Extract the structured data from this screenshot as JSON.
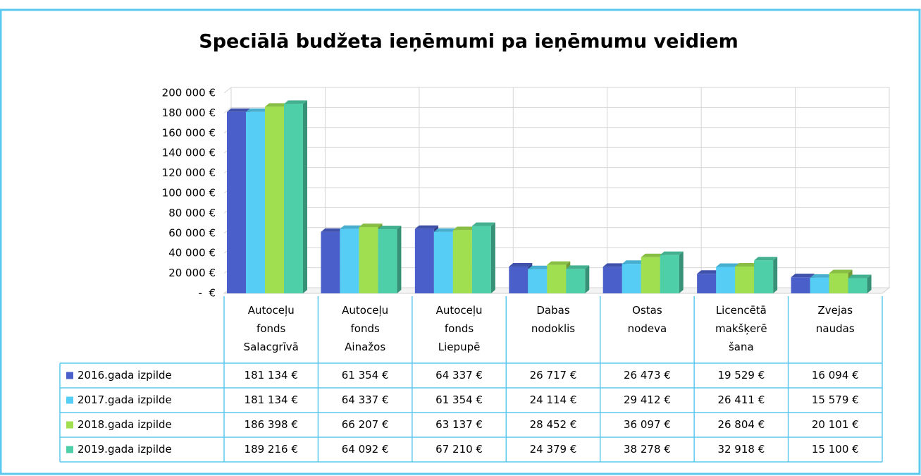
{
  "chart_data": {
    "type": "bar",
    "title": "Speciālā budžeta ieņēmumi pa ieņēmumu veidiem",
    "categories": [
      "Autoceļu fonds Salacgrīvā",
      "Autoceļu fonds Ainažos",
      "Autoceļu fonds Liepupē",
      "Dabas nodoklis",
      "Ostas nodeva",
      "Licencētā makšķerē šana",
      "Zvejas naudas"
    ],
    "series": [
      {
        "name": "2016.gada izpilde",
        "color": "#4a5fc9",
        "values": [
          181134,
          61354,
          64337,
          26717,
          26473,
          19529,
          16094
        ],
        "value_labels": [
          "181 134 €",
          "61 354 €",
          "64 337 €",
          "26 717 €",
          "26 473 €",
          "19 529 €",
          "16 094 €"
        ]
      },
      {
        "name": "2017.gada izpilde",
        "color": "#55cdf5",
        "values": [
          181134,
          64337,
          61354,
          24114,
          29412,
          26411,
          15579
        ],
        "value_labels": [
          "181 134 €",
          "64 337 €",
          "61 354 €",
          "24 114 €",
          "29 412 €",
          "26 411 €",
          "15 579 €"
        ]
      },
      {
        "name": "2018.gada izpilde",
        "color": "#a0e050",
        "values": [
          186398,
          66207,
          63137,
          28452,
          36097,
          26804,
          20101
        ],
        "value_labels": [
          "186 398 €",
          "66 207 €",
          "63 137 €",
          "28 452 €",
          "36 097 €",
          "26 804 €",
          "20 101 €"
        ]
      },
      {
        "name": "2019.gada izpilde",
        "color": "#4fcfa8",
        "values": [
          189216,
          64092,
          67210,
          24379,
          38278,
          32918,
          15100
        ],
        "value_labels": [
          "189 216 €",
          "64 092 €",
          "67 210 €",
          "24 379 €",
          "38 278 €",
          "32 918 €",
          "15 100 €"
        ]
      }
    ],
    "ylim": [
      0,
      200000
    ],
    "yticks": [
      {
        "value": 0,
        "label": "-  €"
      },
      {
        "value": 20000,
        "label": "20 000 €"
      },
      {
        "value": 40000,
        "label": "40 000 €"
      },
      {
        "value": 60000,
        "label": "60 000 €"
      },
      {
        "value": 80000,
        "label": "80 000 €"
      },
      {
        "value": 100000,
        "label": "100 000 €"
      },
      {
        "value": 120000,
        "label": "120 000 €"
      },
      {
        "value": 140000,
        "label": "140 000 €"
      },
      {
        "value": 160000,
        "label": "160 000 €"
      },
      {
        "value": 180000,
        "label": "180 000 €"
      },
      {
        "value": 200000,
        "label": "200 000 €"
      }
    ],
    "grid": true
  }
}
